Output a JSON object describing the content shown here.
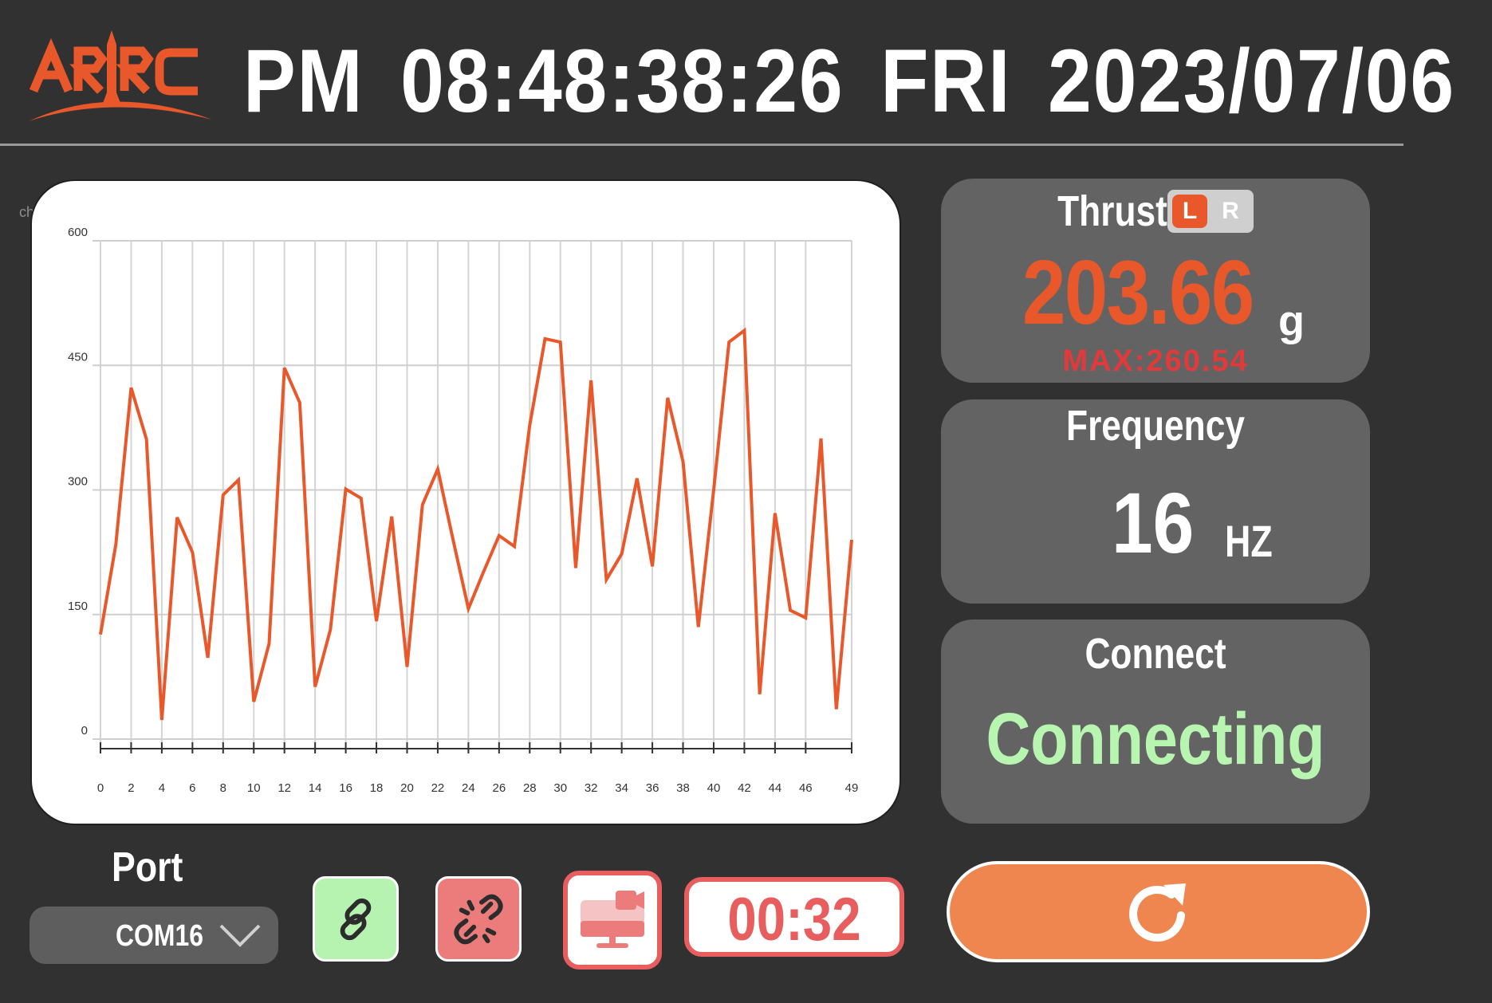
{
  "header": {
    "logo_text": "ARRC",
    "clock_parts": [
      "PM",
      "08:48:38:26",
      "FRI",
      "2023/07/06"
    ],
    "logo_color": "#e8582a"
  },
  "chart_side_label": "ch",
  "chart_data": {
    "type": "line",
    "title": "",
    "xlabel": "",
    "ylabel": "",
    "ylim": [
      0,
      600
    ],
    "xlim": [
      0,
      49
    ],
    "y_ticks": [
      0,
      150,
      300,
      450,
      600
    ],
    "x_tick_labels": [
      0,
      2,
      4,
      6,
      8,
      10,
      12,
      14,
      16,
      18,
      20,
      22,
      24,
      26,
      28,
      30,
      32,
      34,
      36,
      38,
      40,
      42,
      44,
      46,
      49
    ],
    "grid": true,
    "legend": "none",
    "series": [
      {
        "color": "#e8582a",
        "x": [
          0,
          1,
          2,
          3,
          4,
          5,
          6,
          7,
          8,
          9,
          10,
          11,
          12,
          13,
          14,
          15,
          16,
          17,
          18,
          19,
          20,
          21,
          22,
          23,
          24,
          25,
          26,
          27,
          28,
          29,
          30,
          31,
          32,
          33,
          34,
          35,
          36,
          37,
          38,
          39,
          40,
          41,
          42,
          43,
          44,
          45,
          46,
          47,
          48,
          49
        ],
        "values": [
          126,
          234,
          423,
          361,
          23,
          267,
          225,
          98,
          294,
          312,
          45,
          115,
          447,
          405,
          63,
          132,
          301,
          290,
          142,
          268,
          87,
          282,
          325,
          240,
          157,
          202,
          245,
          232,
          378,
          482,
          478,
          206,
          432,
          192,
          223,
          314,
          208,
          411,
          334,
          135,
          300,
          478,
          492,
          54,
          272,
          155,
          146,
          362,
          36,
          240
        ]
      }
    ]
  },
  "thrust": {
    "title": "Thrust",
    "toggle_left": "L",
    "toggle_right": "R",
    "value": "203.66",
    "unit": "g",
    "max_text": "MAX:260.54"
  },
  "frequency": {
    "title": "Frequency",
    "value": "16",
    "unit": "HZ"
  },
  "connect": {
    "title": "Connect",
    "status": "Connecting"
  },
  "port": {
    "label": "Port",
    "selected": "COM16"
  },
  "controls": {
    "connect_icon": "link-icon",
    "disconnect_icon": "broken-link-icon",
    "record_icon": "screen-record-icon",
    "timer": "00:32",
    "refresh_icon": "refresh-icon"
  }
}
